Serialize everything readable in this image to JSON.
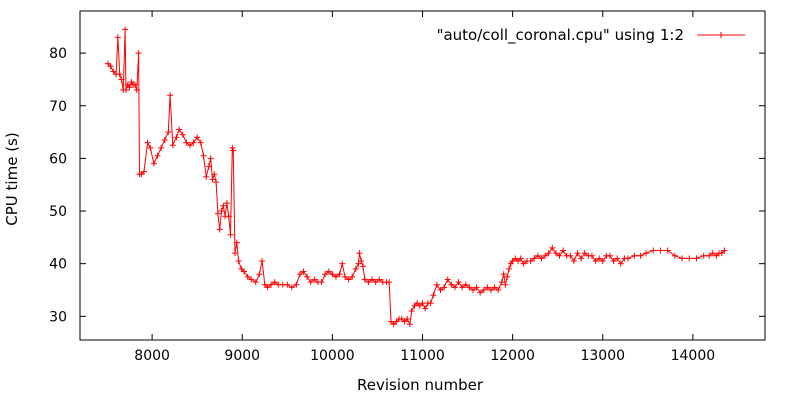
{
  "chart_data": {
    "type": "line",
    "xlabel": "Revision number",
    "ylabel": "CPU time (s)",
    "xlim": [
      7200,
      14800
    ],
    "ylim": [
      25.5,
      88
    ],
    "x_ticks": [
      8000,
      9000,
      10000,
      11000,
      12000,
      13000,
      14000
    ],
    "y_ticks": [
      30,
      40,
      50,
      60,
      70,
      80
    ],
    "grid": false,
    "legend_position": "top-right",
    "series": [
      {
        "name": "\"auto/coll_coronal.cpu\" using 1:2",
        "color": "#ff0000",
        "marker": "plus",
        "points": [
          [
            7510,
            78
          ],
          [
            7540,
            77.5
          ],
          [
            7570,
            76.5
          ],
          [
            7600,
            76
          ],
          [
            7620,
            83
          ],
          [
            7640,
            76
          ],
          [
            7660,
            75
          ],
          [
            7680,
            73
          ],
          [
            7700,
            84.5
          ],
          [
            7710,
            73
          ],
          [
            7730,
            74
          ],
          [
            7750,
            73.5
          ],
          [
            7770,
            74.5
          ],
          [
            7790,
            74
          ],
          [
            7810,
            74
          ],
          [
            7830,
            73
          ],
          [
            7850,
            80
          ],
          [
            7860,
            57
          ],
          [
            7880,
            57
          ],
          [
            7910,
            57.5
          ],
          [
            7950,
            63
          ],
          [
            7980,
            62
          ],
          [
            8020,
            59
          ],
          [
            8060,
            60.5
          ],
          [
            8100,
            62
          ],
          [
            8140,
            63.5
          ],
          [
            8180,
            65
          ],
          [
            8200,
            72
          ],
          [
            8230,
            62.5
          ],
          [
            8270,
            64
          ],
          [
            8300,
            65.5
          ],
          [
            8340,
            64.5
          ],
          [
            8380,
            63
          ],
          [
            8420,
            62.5
          ],
          [
            8460,
            63
          ],
          [
            8500,
            64
          ],
          [
            8540,
            63
          ],
          [
            8570,
            60.5
          ],
          [
            8600,
            56.5
          ],
          [
            8630,
            58.5
          ],
          [
            8650,
            60
          ],
          [
            8670,
            56
          ],
          [
            8690,
            57
          ],
          [
            8710,
            55.5
          ],
          [
            8730,
            49.5
          ],
          [
            8750,
            46.5
          ],
          [
            8770,
            50
          ],
          [
            8790,
            51
          ],
          [
            8810,
            49
          ],
          [
            8830,
            51.5
          ],
          [
            8850,
            49
          ],
          [
            8870,
            45.5
          ],
          [
            8890,
            62
          ],
          [
            8900,
            61.5
          ],
          [
            8920,
            42
          ],
          [
            8940,
            44
          ],
          [
            8960,
            40.5
          ],
          [
            8990,
            39
          ],
          [
            9020,
            38.5
          ],
          [
            9060,
            37.5
          ],
          [
            9100,
            37
          ],
          [
            9150,
            36.5
          ],
          [
            9190,
            38
          ],
          [
            9220,
            40.5
          ],
          [
            9250,
            36
          ],
          [
            9280,
            35.5
          ],
          [
            9320,
            36
          ],
          [
            9360,
            36.5
          ],
          [
            9400,
            36
          ],
          [
            9450,
            36
          ],
          [
            9500,
            36
          ],
          [
            9550,
            35.5
          ],
          [
            9600,
            36
          ],
          [
            9640,
            38
          ],
          [
            9680,
            38.5
          ],
          [
            9720,
            37.5
          ],
          [
            9760,
            36.5
          ],
          [
            9800,
            37
          ],
          [
            9840,
            36.5
          ],
          [
            9880,
            36.5
          ],
          [
            9920,
            38
          ],
          [
            9960,
            38.5
          ],
          [
            10000,
            38
          ],
          [
            10040,
            37.5
          ],
          [
            10080,
            38
          ],
          [
            10110,
            40
          ],
          [
            10140,
            37.5
          ],
          [
            10180,
            37
          ],
          [
            10220,
            37.5
          ],
          [
            10260,
            39
          ],
          [
            10290,
            40
          ],
          [
            10300,
            42
          ],
          [
            10320,
            40.5
          ],
          [
            10340,
            39.5
          ],
          [
            10360,
            37
          ],
          [
            10400,
            36.5
          ],
          [
            10440,
            37
          ],
          [
            10480,
            36.5
          ],
          [
            10520,
            37
          ],
          [
            10560,
            36.5
          ],
          [
            10600,
            36.5
          ],
          [
            10630,
            36.5
          ],
          [
            10650,
            29
          ],
          [
            10680,
            28.5
          ],
          [
            10710,
            29
          ],
          [
            10740,
            29.5
          ],
          [
            10770,
            29.5
          ],
          [
            10800,
            29
          ],
          [
            10830,
            29.5
          ],
          [
            10860,
            28.5
          ],
          [
            10880,
            31
          ],
          [
            10910,
            32
          ],
          [
            10940,
            32.5
          ],
          [
            10970,
            32
          ],
          [
            11000,
            32.5
          ],
          [
            11030,
            31.5
          ],
          [
            11060,
            32.5
          ],
          [
            11090,
            32.5
          ],
          [
            11120,
            34
          ],
          [
            11160,
            36
          ],
          [
            11200,
            35
          ],
          [
            11240,
            35.5
          ],
          [
            11280,
            37
          ],
          [
            11320,
            36
          ],
          [
            11360,
            35.5
          ],
          [
            11400,
            36.5
          ],
          [
            11440,
            35.5
          ],
          [
            11480,
            36
          ],
          [
            11520,
            35.5
          ],
          [
            11560,
            35
          ],
          [
            11600,
            35.5
          ],
          [
            11640,
            34.5
          ],
          [
            11680,
            35
          ],
          [
            11720,
            35.5
          ],
          [
            11760,
            35
          ],
          [
            11800,
            35.5
          ],
          [
            11840,
            35
          ],
          [
            11880,
            36.5
          ],
          [
            11900,
            38
          ],
          [
            11920,
            36
          ],
          [
            11940,
            37.5
          ],
          [
            11960,
            39
          ],
          [
            11980,
            40
          ],
          [
            12000,
            40.5
          ],
          [
            12030,
            41
          ],
          [
            12060,
            40.5
          ],
          [
            12090,
            41
          ],
          [
            12120,
            40
          ],
          [
            12160,
            40.5
          ],
          [
            12200,
            40.5
          ],
          [
            12240,
            41
          ],
          [
            12280,
            41.5
          ],
          [
            12320,
            41
          ],
          [
            12360,
            41.5
          ],
          [
            12400,
            42
          ],
          [
            12440,
            43
          ],
          [
            12480,
            42
          ],
          [
            12520,
            41.5
          ],
          [
            12560,
            42.5
          ],
          [
            12600,
            41.5
          ],
          [
            12640,
            41.5
          ],
          [
            12680,
            40.5
          ],
          [
            12720,
            42
          ],
          [
            12760,
            41
          ],
          [
            12800,
            42
          ],
          [
            12840,
            41.5
          ],
          [
            12880,
            41.5
          ],
          [
            12920,
            40.5
          ],
          [
            12960,
            41
          ],
          [
            13000,
            40.5
          ],
          [
            13040,
            41.5
          ],
          [
            13080,
            41.5
          ],
          [
            13120,
            40.5
          ],
          [
            13160,
            41
          ],
          [
            13200,
            40
          ],
          [
            13240,
            41
          ],
          [
            13280,
            41
          ],
          [
            13350,
            41.5
          ],
          [
            13420,
            41.5
          ],
          [
            13480,
            42
          ],
          [
            13560,
            42.5
          ],
          [
            13640,
            42.5
          ],
          [
            13720,
            42.5
          ],
          [
            13800,
            41.5
          ],
          [
            13880,
            41
          ],
          [
            13960,
            41
          ],
          [
            14040,
            41
          ],
          [
            14120,
            41.5
          ],
          [
            14180,
            41.5
          ],
          [
            14220,
            42
          ],
          [
            14260,
            41.5
          ],
          [
            14290,
            42
          ],
          [
            14320,
            42
          ],
          [
            14350,
            42.5
          ]
        ]
      }
    ]
  }
}
